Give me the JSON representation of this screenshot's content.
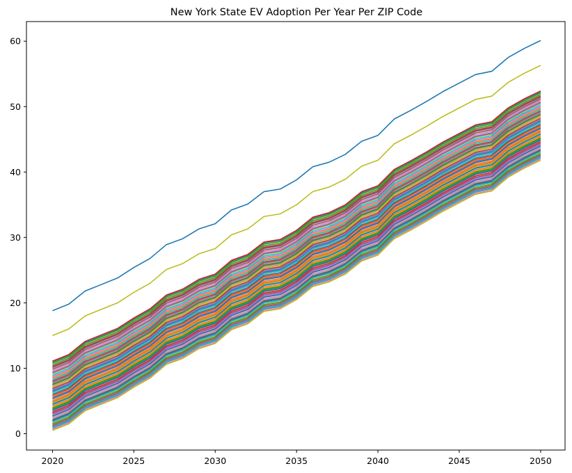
{
  "chart_data": {
    "type": "line",
    "title": "New York State EV Adoption Per Year Per ZIP Code",
    "xlabel": "",
    "ylabel": "",
    "xlim": [
      2018.4,
      2051.5
    ],
    "ylim": [
      -2.5,
      63
    ],
    "grid": false,
    "legend": "none",
    "x": [
      2020,
      2021,
      2022,
      2023,
      2024,
      2025,
      2026,
      2027,
      2028,
      2029,
      2030,
      2031,
      2032,
      2033,
      2034,
      2035,
      2036,
      2037,
      2038,
      2039,
      2040,
      2041,
      2042,
      2043,
      2044,
      2045,
      2046,
      2047,
      2048,
      2049,
      2050
    ],
    "x_ticks": [
      2020,
      2025,
      2030,
      2035,
      2040,
      2045,
      2050
    ],
    "y_ticks": [
      0,
      10,
      20,
      30,
      40,
      50,
      60
    ],
    "line_count": 80,
    "palette": [
      "#1f77b4",
      "#ff7f0e",
      "#2ca02c",
      "#d62728",
      "#9467bd",
      "#8c564b",
      "#e377c2",
      "#7f7f7f",
      "#bcbd22",
      "#17becf"
    ],
    "series": [
      {
        "color": "#1f77b4",
        "values": [
          18.8,
          19.8,
          21.8,
          22.8,
          23.8,
          25.4,
          26.8,
          28.9,
          29.8,
          31.3,
          32.1,
          34.2,
          35.1,
          37.0,
          37.4,
          38.8,
          40.8,
          41.5,
          42.7,
          44.7,
          45.6,
          48.1,
          49.4,
          50.8,
          52.3,
          53.6,
          54.9,
          55.4,
          57.5,
          58.9,
          60.1
        ]
      },
      {
        "color": "#bcbd22",
        "values": [
          15.0,
          16.0,
          18.0,
          19.0,
          20.0,
          21.6,
          23.0,
          25.1,
          26.0,
          27.5,
          28.3,
          30.4,
          31.3,
          33.2,
          33.6,
          35.0,
          37.0,
          37.7,
          38.9,
          40.9,
          41.8,
          44.3,
          45.6,
          47.0,
          48.5,
          49.8,
          51.1,
          51.6,
          53.7,
          55.1,
          56.3
        ]
      },
      {
        "color": "#d62728",
        "values": [
          11.1,
          12.1,
          14.1,
          15.1,
          16.1,
          17.7,
          19.1,
          21.2,
          22.1,
          23.6,
          24.4,
          26.5,
          27.4,
          29.3,
          29.7,
          31.1,
          33.1,
          33.8,
          35.0,
          37.0,
          37.9,
          40.4,
          41.7,
          43.1,
          44.6,
          45.9,
          47.2,
          47.7,
          49.8,
          51.2,
          52.4
        ]
      },
      {
        "color": "#2ca02c",
        "values": [
          10.8,
          11.8,
          13.8,
          14.8,
          15.8,
          17.4,
          18.8,
          20.9,
          21.8,
          23.3,
          24.1,
          26.2,
          27.1,
          29.0,
          29.4,
          30.8,
          32.8,
          33.5,
          34.7,
          36.7,
          37.6,
          40.1,
          41.4,
          42.8,
          44.3,
          45.6,
          46.9,
          47.4,
          49.5,
          50.9,
          52.1
        ]
      },
      {
        "color": "#8c564b",
        "values": [
          10.2,
          11.2,
          13.2,
          14.2,
          15.2,
          16.8,
          18.2,
          20.3,
          21.2,
          22.7,
          23.5,
          25.6,
          26.5,
          28.4,
          28.8,
          30.2,
          32.2,
          32.9,
          34.1,
          36.1,
          37.0,
          39.5,
          40.8,
          42.2,
          43.7,
          45.0,
          46.3,
          46.8,
          48.9,
          50.3,
          51.5
        ]
      },
      {
        "color": "#9467bd",
        "values": [
          9.3,
          10.3,
          12.3,
          13.3,
          14.3,
          15.9,
          17.3,
          19.4,
          20.3,
          21.8,
          22.6,
          24.7,
          25.6,
          27.5,
          27.9,
          29.3,
          31.3,
          32.0,
          33.2,
          35.2,
          36.1,
          38.6,
          39.9,
          41.3,
          42.8,
          44.1,
          45.4,
          45.9,
          48.0,
          49.4,
          50.6
        ]
      },
      {
        "color": "#e377c2",
        "values": [
          8.7,
          9.7,
          11.7,
          12.7,
          13.7,
          15.3,
          16.7,
          18.8,
          19.7,
          21.2,
          22.0,
          24.1,
          25.0,
          26.9,
          27.3,
          28.7,
          30.7,
          31.4,
          32.6,
          34.6,
          35.5,
          38.0,
          39.3,
          40.7,
          42.2,
          43.5,
          44.8,
          45.3,
          47.4,
          48.8,
          50.0
        ]
      },
      {
        "color": "#17becf",
        "values": [
          8.3,
          9.3,
          11.3,
          12.3,
          13.3,
          14.9,
          16.3,
          18.4,
          19.3,
          20.8,
          21.6,
          23.7,
          24.6,
          26.5,
          26.9,
          28.3,
          30.3,
          31.0,
          32.2,
          34.2,
          35.1,
          37.6,
          38.9,
          40.3,
          41.8,
          43.1,
          44.4,
          44.9,
          47.0,
          48.4,
          49.6
        ]
      },
      {
        "color": "#7f7f7f",
        "values": [
          7.9,
          8.9,
          10.9,
          11.9,
          12.9,
          14.5,
          15.9,
          18.0,
          18.9,
          20.4,
          21.2,
          23.3,
          24.2,
          26.1,
          26.5,
          27.9,
          29.9,
          30.6,
          31.8,
          33.8,
          34.7,
          37.2,
          38.5,
          39.9,
          41.4,
          42.7,
          44.0,
          44.5,
          46.6,
          48.0,
          49.2
        ]
      },
      {
        "color": "#2ca02c",
        "values": [
          7.5,
          8.5,
          10.5,
          11.5,
          12.5,
          14.1,
          15.5,
          17.6,
          18.5,
          20.0,
          20.8,
          22.9,
          23.8,
          25.7,
          26.1,
          27.5,
          29.5,
          30.2,
          31.4,
          33.4,
          34.3,
          36.8,
          38.1,
          39.5,
          41.0,
          42.3,
          43.6,
          44.1,
          46.2,
          47.6,
          48.8
        ]
      },
      {
        "color": "#bcbd22",
        "values": [
          7.2,
          8.2,
          10.2,
          11.2,
          12.2,
          13.8,
          15.2,
          17.3,
          18.2,
          19.7,
          20.5,
          22.6,
          23.5,
          25.4,
          25.8,
          27.2,
          29.2,
          29.9,
          31.1,
          33.1,
          34.0,
          36.5,
          37.8,
          39.2,
          40.7,
          42.0,
          43.3,
          43.8,
          45.9,
          47.3,
          48.5
        ]
      },
      {
        "color": "#d62728",
        "values": [
          6.9,
          7.9,
          9.9,
          10.9,
          11.9,
          13.5,
          14.9,
          17.0,
          17.9,
          19.4,
          20.2,
          22.3,
          23.2,
          25.1,
          25.5,
          26.9,
          28.9,
          29.6,
          30.8,
          32.8,
          33.7,
          36.2,
          37.5,
          38.9,
          40.4,
          41.7,
          43.0,
          43.5,
          45.6,
          47.0,
          48.2
        ]
      },
      {
        "color": "#9467bd",
        "values": [
          6.6,
          7.6,
          9.6,
          10.6,
          11.6,
          13.2,
          14.6,
          16.7,
          17.6,
          19.1,
          19.9,
          22.0,
          22.9,
          24.8,
          25.2,
          26.6,
          28.6,
          29.3,
          30.5,
          32.5,
          33.4,
          35.9,
          37.2,
          38.6,
          40.1,
          41.4,
          42.7,
          43.2,
          45.3,
          46.7,
          47.9
        ]
      },
      {
        "color": "#17becf",
        "values": [
          6.3,
          7.3,
          9.3,
          10.3,
          11.3,
          12.9,
          14.3,
          16.4,
          17.3,
          18.8,
          19.6,
          21.7,
          22.6,
          24.5,
          24.9,
          26.3,
          28.3,
          29.0,
          30.2,
          32.2,
          33.1,
          35.6,
          36.9,
          38.3,
          39.8,
          41.1,
          42.4,
          42.9,
          45.0,
          46.4,
          47.6
        ]
      },
      {
        "color": "#1f77b4",
        "values": [
          6.0,
          7.0,
          9.0,
          10.0,
          11.0,
          12.6,
          14.0,
          16.1,
          17.0,
          18.5,
          19.3,
          21.4,
          22.3,
          24.2,
          24.6,
          26.0,
          28.0,
          28.7,
          29.9,
          31.9,
          32.8,
          35.3,
          36.6,
          38.0,
          39.5,
          40.8,
          42.1,
          42.6,
          44.7,
          46.1,
          47.3
        ]
      },
      {
        "color": "#ff7f0e",
        "values": [
          5.7,
          6.7,
          8.7,
          9.7,
          10.7,
          12.3,
          13.7,
          15.8,
          16.7,
          18.2,
          19.0,
          21.1,
          22.0,
          23.9,
          24.3,
          25.7,
          27.7,
          28.4,
          29.6,
          31.6,
          32.5,
          35.0,
          36.3,
          37.7,
          39.2,
          40.5,
          41.8,
          42.3,
          44.4,
          45.8,
          47.0
        ]
      },
      {
        "color": "#1f77b4",
        "values": [
          5.4,
          6.4,
          8.4,
          9.4,
          10.4,
          12.0,
          13.4,
          15.5,
          16.4,
          17.9,
          18.7,
          20.8,
          21.7,
          23.6,
          24.0,
          25.4,
          27.4,
          28.1,
          29.3,
          31.3,
          32.2,
          34.7,
          36.0,
          37.4,
          38.9,
          40.2,
          41.5,
          42.0,
          44.1,
          45.5,
          46.7
        ]
      },
      {
        "color": "#ff7f0e",
        "values": [
          5.1,
          6.1,
          8.1,
          9.1,
          10.1,
          11.7,
          13.1,
          15.2,
          16.1,
          17.6,
          18.4,
          20.5,
          21.4,
          23.3,
          23.7,
          25.1,
          27.1,
          27.8,
          29.0,
          31.0,
          31.9,
          34.4,
          35.7,
          37.1,
          38.6,
          39.9,
          41.2,
          41.7,
          43.8,
          45.2,
          46.4
        ]
      },
      {
        "color": "#ff7f0e",
        "values": [
          4.8,
          5.8,
          7.8,
          8.8,
          9.8,
          11.4,
          12.8,
          14.9,
          15.8,
          17.3,
          18.1,
          20.2,
          21.1,
          23.0,
          23.4,
          24.8,
          26.8,
          27.5,
          28.7,
          30.7,
          31.6,
          34.1,
          35.4,
          36.8,
          38.3,
          39.6,
          40.9,
          41.4,
          43.5,
          44.9,
          46.1
        ]
      },
      {
        "color": "#1f77b4",
        "values": [
          4.5,
          5.5,
          7.5,
          8.5,
          9.5,
          11.1,
          12.5,
          14.6,
          15.5,
          17.0,
          17.8,
          19.9,
          20.8,
          22.7,
          23.1,
          24.5,
          26.5,
          27.2,
          28.4,
          30.4,
          31.3,
          33.8,
          35.1,
          36.5,
          38.0,
          39.3,
          40.6,
          41.1,
          43.2,
          44.6,
          45.8
        ]
      },
      {
        "color": "#ff7f0e",
        "values": [
          4.2,
          5.2,
          7.2,
          8.2,
          9.2,
          10.8,
          12.2,
          14.3,
          15.2,
          16.7,
          17.5,
          19.6,
          20.5,
          22.4,
          22.8,
          24.2,
          26.2,
          26.9,
          28.1,
          30.1,
          31.0,
          33.5,
          34.8,
          36.2,
          37.7,
          39.0,
          40.3,
          40.8,
          42.9,
          44.3,
          45.5
        ]
      },
      {
        "color": "#2ca02c",
        "values": [
          3.9,
          4.9,
          6.9,
          7.9,
          8.9,
          10.5,
          11.9,
          14.0,
          14.9,
          16.4,
          17.2,
          19.3,
          20.2,
          22.1,
          22.5,
          23.9,
          25.9,
          26.6,
          27.8,
          29.8,
          30.7,
          33.2,
          34.5,
          35.9,
          37.4,
          38.7,
          40.0,
          40.5,
          42.6,
          44.0,
          45.2
        ]
      },
      {
        "color": "#1f77b4",
        "values": [
          3.6,
          4.6,
          6.6,
          7.6,
          8.6,
          10.2,
          11.6,
          13.7,
          14.6,
          16.1,
          16.9,
          19.0,
          19.9,
          21.8,
          22.2,
          23.6,
          25.6,
          26.3,
          27.5,
          29.5,
          30.4,
          32.9,
          34.2,
          35.6,
          37.1,
          38.4,
          39.7,
          40.2,
          42.3,
          43.7,
          44.9
        ]
      },
      {
        "color": "#d62728",
        "values": [
          3.3,
          4.3,
          6.3,
          7.3,
          8.3,
          9.9,
          11.3,
          13.4,
          14.3,
          15.8,
          16.6,
          18.7,
          19.6,
          21.5,
          21.9,
          23.3,
          25.3,
          26.0,
          27.2,
          29.2,
          30.1,
          32.6,
          33.9,
          35.3,
          36.8,
          38.1,
          39.4,
          39.9,
          42.0,
          43.4,
          44.6
        ]
      },
      {
        "color": "#9467bd",
        "values": [
          3.0,
          4.0,
          6.0,
          7.0,
          8.0,
          9.6,
          11.0,
          13.1,
          14.0,
          15.5,
          16.3,
          18.4,
          19.3,
          21.2,
          21.6,
          23.0,
          25.0,
          25.7,
          26.9,
          28.9,
          29.8,
          32.3,
          33.6,
          35.0,
          36.5,
          37.8,
          39.1,
          39.6,
          41.7,
          43.1,
          44.3
        ]
      },
      {
        "color": "#1f77b4",
        "values": [
          2.7,
          3.7,
          5.7,
          6.7,
          7.7,
          9.3,
          10.7,
          12.8,
          13.7,
          15.2,
          16.0,
          18.1,
          19.0,
          20.9,
          21.3,
          22.7,
          24.7,
          25.4,
          26.6,
          28.6,
          29.5,
          32.0,
          33.3,
          34.7,
          36.2,
          37.5,
          38.8,
          39.3,
          41.4,
          42.8,
          44.0
        ]
      },
      {
        "color": "#e377c2",
        "values": [
          2.4,
          3.4,
          5.4,
          6.4,
          7.4,
          9.0,
          10.4,
          12.5,
          13.4,
          14.9,
          15.7,
          17.8,
          18.7,
          20.6,
          21.0,
          22.4,
          24.4,
          25.1,
          26.3,
          28.3,
          29.2,
          31.7,
          33.0,
          34.4,
          35.9,
          37.2,
          38.5,
          39.0,
          41.1,
          42.5,
          43.7
        ]
      },
      {
        "color": "#8c564b",
        "values": [
          2.1,
          3.1,
          5.1,
          6.1,
          7.1,
          8.7,
          10.1,
          12.2,
          13.1,
          14.6,
          15.4,
          17.5,
          18.4,
          20.3,
          20.7,
          22.1,
          24.1,
          24.8,
          26.0,
          28.0,
          28.9,
          31.4,
          32.7,
          34.1,
          35.6,
          36.9,
          38.2,
          38.7,
          40.8,
          42.2,
          43.4
        ]
      },
      {
        "color": "#17becf",
        "values": [
          1.8,
          2.8,
          4.8,
          5.8,
          6.8,
          8.4,
          9.8,
          11.9,
          12.8,
          14.3,
          15.1,
          17.2,
          18.1,
          20.0,
          20.4,
          21.8,
          23.8,
          24.5,
          25.7,
          27.7,
          28.6,
          31.1,
          32.4,
          33.8,
          35.3,
          36.6,
          37.9,
          38.4,
          40.5,
          41.9,
          43.1
        ]
      },
      {
        "color": "#2ca02c",
        "values": [
          1.5,
          2.5,
          4.5,
          5.5,
          6.5,
          8.1,
          9.5,
          11.6,
          12.5,
          14.0,
          14.8,
          16.9,
          17.8,
          19.7,
          20.1,
          21.5,
          23.5,
          24.2,
          25.4,
          27.4,
          28.3,
          30.8,
          32.1,
          33.5,
          35.0,
          36.3,
          37.6,
          38.1,
          40.2,
          41.6,
          42.8
        ]
      },
      {
        "color": "#7f7f7f",
        "values": [
          1.2,
          2.2,
          4.2,
          5.2,
          6.2,
          7.8,
          9.2,
          11.3,
          12.2,
          13.7,
          14.5,
          16.6,
          17.5,
          19.4,
          19.8,
          21.2,
          23.2,
          23.9,
          25.1,
          27.1,
          28.0,
          30.5,
          31.8,
          33.2,
          34.7,
          36.0,
          37.3,
          37.8,
          39.9,
          41.3,
          42.5
        ]
      },
      {
        "color": "#17becf",
        "values": [
          0.9,
          1.9,
          3.9,
          4.9,
          5.9,
          7.5,
          8.9,
          11.0,
          11.9,
          13.4,
          14.2,
          16.3,
          17.2,
          19.1,
          19.5,
          20.9,
          22.9,
          23.6,
          24.8,
          26.8,
          27.7,
          30.2,
          31.5,
          32.9,
          34.4,
          35.7,
          37.0,
          37.5,
          39.6,
          41.0,
          42.2
        ]
      },
      {
        "color": "#bcbd22",
        "values": [
          0.5,
          1.5,
          3.5,
          4.5,
          5.5,
          7.1,
          8.5,
          10.6,
          11.5,
          13.0,
          13.8,
          15.9,
          16.8,
          18.7,
          19.1,
          20.5,
          22.5,
          23.2,
          24.4,
          26.4,
          27.3,
          29.8,
          31.1,
          32.5,
          34.0,
          35.3,
          36.6,
          37.1,
          39.2,
          40.6,
          41.8
        ]
      }
    ]
  }
}
